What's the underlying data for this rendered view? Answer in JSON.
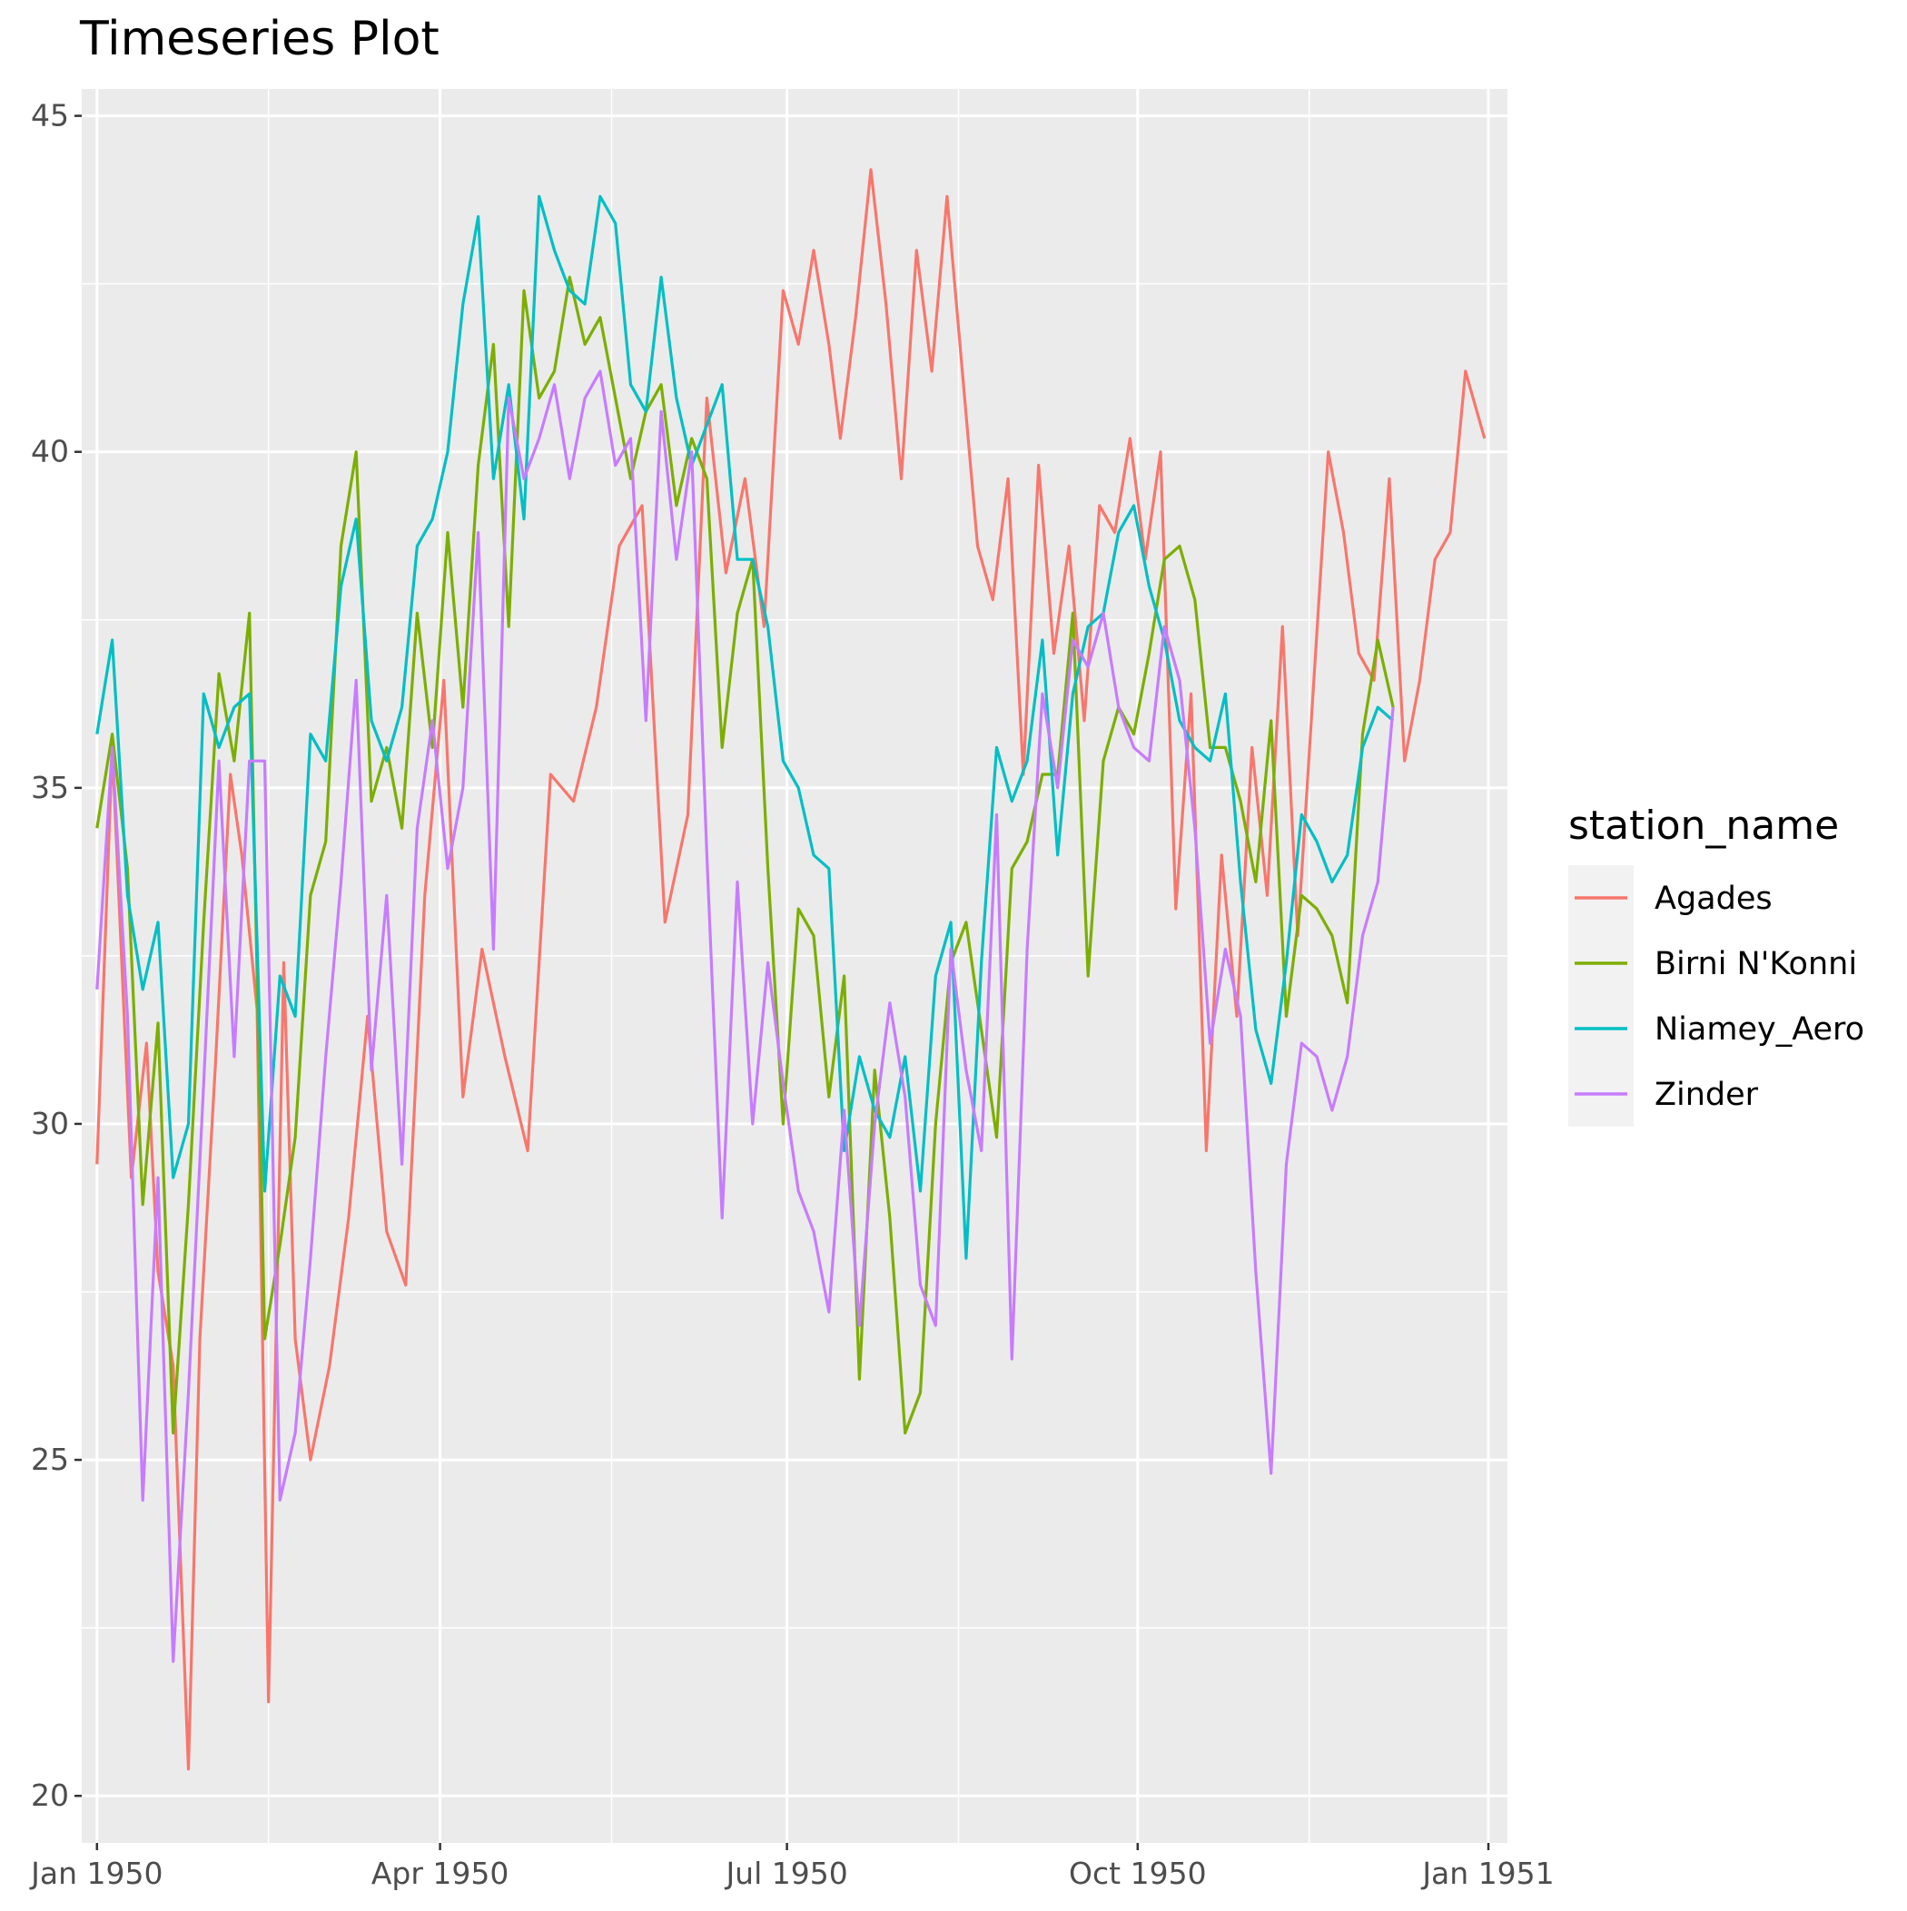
{
  "chart_data": {
    "type": "line",
    "title": "Timeseries Plot",
    "xlabel": "",
    "ylabel": "",
    "x_type": "date",
    "xlim": [
      "1949-12-28",
      "1951-01-06"
    ],
    "ylim": [
      19.3,
      45.4
    ],
    "grid": true,
    "x_ticks": [
      {
        "date": "1950-01-01",
        "label": "Jan 1950"
      },
      {
        "date": "1950-04-01",
        "label": "Apr 1950"
      },
      {
        "date": "1950-07-01",
        "label": "Jul 1950"
      },
      {
        "date": "1950-10-01",
        "label": "Oct 1950"
      },
      {
        "date": "1951-01-01",
        "label": "Jan 1951"
      }
    ],
    "x_minor_dates": [
      "1950-02-15",
      "1950-05-16",
      "1950-08-15",
      "1950-11-15"
    ],
    "y_ticks": [
      20,
      25,
      30,
      35,
      40,
      45
    ],
    "y_minor": [
      22.5,
      27.5,
      32.5,
      37.5,
      42.5
    ],
    "legend": {
      "title": "station_name",
      "position": "right"
    },
    "series": [
      {
        "name": "Agades",
        "color": "#F8766D",
        "x": [
          "1950-01-01",
          "1950-01-05",
          "1950-01-10",
          "1950-01-14",
          "1950-01-17",
          "1950-01-21",
          "1950-01-25",
          "1950-01-28",
          "1950-02-01",
          "1950-02-05",
          "1950-02-08",
          "1950-02-12",
          "1950-02-15",
          "1950-02-19",
          "1950-02-22",
          "1950-02-26",
          "1950-03-03",
          "1950-03-08",
          "1950-03-13",
          "1950-03-18",
          "1950-03-23",
          "1950-03-28",
          "1950-04-02",
          "1950-04-07",
          "1950-04-12",
          "1950-04-18",
          "1950-04-24",
          "1950-04-30",
          "1950-05-06",
          "1950-05-12",
          "1950-05-18",
          "1950-05-24",
          "1950-05-30",
          "1950-06-05",
          "1950-06-10",
          "1950-06-15",
          "1950-06-20",
          "1950-06-25",
          "1950-06-30",
          "1950-07-04",
          "1950-07-08",
          "1950-07-12",
          "1950-07-15",
          "1950-07-19",
          "1950-07-23",
          "1950-07-27",
          "1950-07-31",
          "1950-08-04",
          "1950-08-08",
          "1950-08-12",
          "1950-08-16",
          "1950-08-20",
          "1950-08-24",
          "1950-08-28",
          "1950-09-01",
          "1950-09-05",
          "1950-09-09",
          "1950-09-13",
          "1950-09-17",
          "1950-09-21",
          "1950-09-25",
          "1950-09-29",
          "1950-10-03",
          "1950-10-07",
          "1950-10-11",
          "1950-10-15",
          "1950-10-19",
          "1950-10-23",
          "1950-10-27",
          "1950-10-31",
          "1950-11-04",
          "1950-11-08",
          "1950-11-12",
          "1950-11-16",
          "1950-11-20",
          "1950-11-24",
          "1950-11-28",
          "1950-12-02",
          "1950-12-06",
          "1950-12-10",
          "1950-12-14",
          "1950-12-18",
          "1950-12-22",
          "1950-12-26",
          "1950-12-31"
        ],
        "y": [
          29.4,
          35.6,
          29.2,
          31.2,
          27.8,
          26.4,
          20.4,
          26.8,
          30.8,
          35.2,
          34.0,
          31.7,
          21.4,
          32.4,
          26.8,
          25.0,
          26.4,
          28.6,
          31.6,
          28.4,
          27.6,
          33.4,
          36.6,
          30.4,
          32.6,
          31.0,
          29.6,
          35.2,
          34.8,
          36.2,
          38.6,
          39.2,
          33.0,
          34.6,
          40.8,
          38.2,
          39.6,
          37.4,
          42.4,
          41.6,
          43.0,
          41.6,
          40.2,
          42.0,
          44.2,
          42.2,
          39.6,
          43.0,
          41.2,
          43.8,
          41.2,
          38.6,
          37.8,
          39.6,
          35.2,
          39.8,
          37.0,
          38.6,
          36.0,
          39.2,
          38.8,
          40.2,
          38.4,
          40.0,
          33.2,
          36.4,
          29.6,
          34.0,
          31.6,
          35.6,
          33.4,
          37.4,
          32.8,
          36.4,
          40.0,
          38.8,
          37.0,
          36.6,
          39.6,
          35.4,
          36.6,
          38.4,
          38.8,
          41.2,
          40.2
        ],
        "seg_note": ""
      },
      {
        "name": "Birni N'Konni",
        "color": "#7CAE00",
        "x": [],
        "y": []
      },
      {
        "name": "Niamey_Aero",
        "color": "#00BFC4",
        "x": [],
        "y": []
      },
      {
        "name": "Zinder",
        "color": "#C77CFF",
        "x": [],
        "y": []
      }
    ]
  }
}
